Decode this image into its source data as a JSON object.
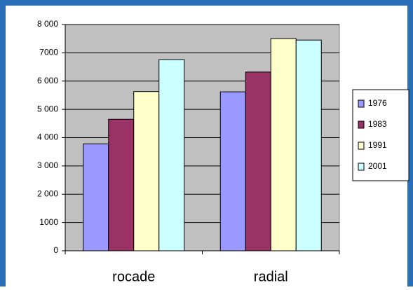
{
  "chart_data": {
    "type": "bar",
    "categories": [
      "rocade",
      "radial"
    ],
    "series": [
      {
        "name": "1976",
        "color": "#9999ff",
        "values": [
          3780,
          5620
        ]
      },
      {
        "name": "1983",
        "color": "#993366",
        "values": [
          4650,
          6320
        ]
      },
      {
        "name": "1991",
        "color": "#ffffcc",
        "values": [
          5630,
          7500
        ]
      },
      {
        "name": "2001",
        "color": "#ccffff",
        "values": [
          6760,
          7450
        ]
      }
    ],
    "ylim": [
      0,
      8000
    ],
    "yticks": [
      0,
      {
        "value": 1000,
        "label": "1000"
      },
      {
        "value": 2000,
        "label": "2 000"
      },
      {
        "value": 3000,
        "label": "3 000"
      },
      {
        "value": 4000,
        "label": "4 000"
      },
      {
        "value": 5000,
        "label": "5 000"
      },
      {
        "value": 6000,
        "label": "6 000"
      },
      {
        "value": 7000,
        "label": "7000"
      },
      {
        "value": 8000,
        "label": "8 000"
      }
    ],
    "grid": true,
    "plot_background": "#c0c0c0",
    "legend": "right"
  }
}
